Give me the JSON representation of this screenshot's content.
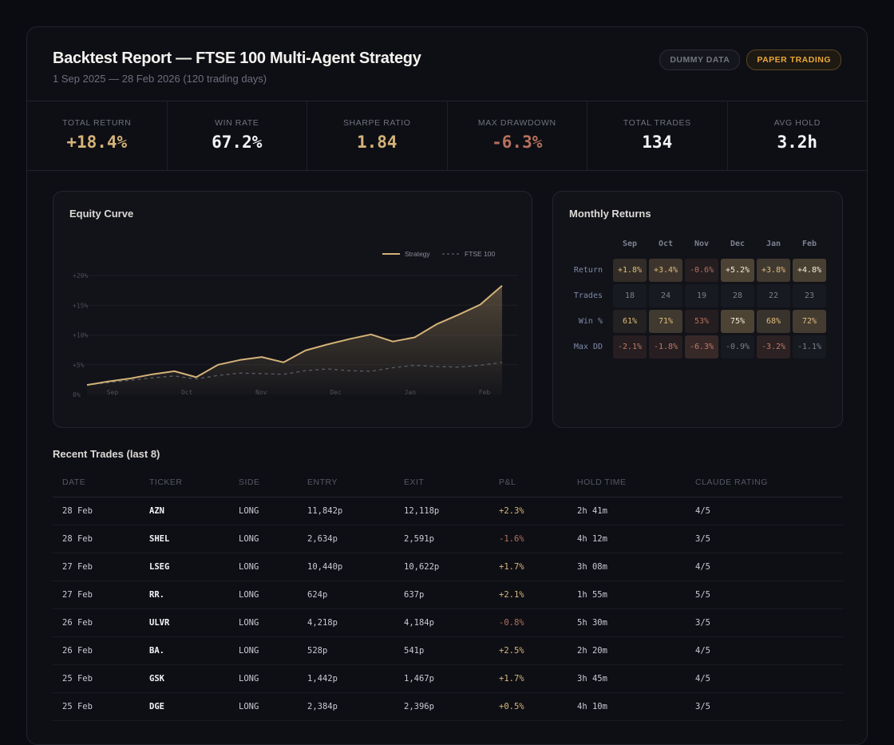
{
  "header": {
    "title": "Backtest Report — FTSE 100 Multi-Agent Strategy",
    "subtitle": "1 Sep 2025 — 28 Feb 2026 (120 trading days)",
    "badges": [
      "DUMMY DATA",
      "PAPER TRADING"
    ]
  },
  "colors": {
    "gold": "#d4b278",
    "red": "#b5705c",
    "white": "#f4f4f6"
  },
  "kpis": [
    {
      "label": "TOTAL RETURN",
      "value": "+18.4%",
      "color": "#d4b278"
    },
    {
      "label": "WIN RATE",
      "value": "67.2%",
      "color": "#f4f4f6"
    },
    {
      "label": "SHARPE RATIO",
      "value": "1.84",
      "color": "#d4b278"
    },
    {
      "label": "MAX DRAWDOWN",
      "value": "-6.3%",
      "color": "#b5705c"
    },
    {
      "label": "TOTAL TRADES",
      "value": "134",
      "color": "#f4f4f6"
    },
    {
      "label": "AVG HOLD",
      "value": "3.2h",
      "color": "#f4f4f6"
    }
  ],
  "chart_data": {
    "type": "line",
    "title": "Equity Curve",
    "legend": [
      "Strategy",
      "FTSE 100"
    ],
    "legend_position": "top-right",
    "y_ticks": [
      "0%",
      "+5%",
      "+10%",
      "+15%",
      "+20%"
    ],
    "x_ticks": [
      "Sep",
      "Oct",
      "Nov",
      "Dec",
      "Jan",
      "Feb"
    ],
    "ylim": [
      0,
      20
    ],
    "series": [
      {
        "name": "Strategy",
        "values": [
          1.6,
          2.2,
          2.7,
          3.4,
          3.9,
          2.9,
          5.0,
          5.8,
          6.3,
          5.4,
          7.4,
          8.4,
          9.3,
          10.1,
          8.9,
          9.6,
          11.8,
          13.4,
          15.1,
          18.3
        ]
      },
      {
        "name": "FTSE 100",
        "values": [
          1.6,
          2.0,
          2.4,
          2.8,
          3.1,
          2.6,
          3.2,
          3.6,
          3.5,
          3.4,
          4.0,
          4.3,
          4.0,
          3.9,
          4.5,
          4.9,
          4.7,
          4.6,
          4.9,
          5.4
        ]
      }
    ]
  },
  "monthly": {
    "title": "Monthly Returns",
    "months": [
      "Sep",
      "Oct",
      "Nov",
      "Dec",
      "Jan",
      "Feb"
    ],
    "rows": [
      {
        "label": "Return",
        "values": [
          "+1.8%",
          "+3.4%",
          "-0.6%",
          "+5.2%",
          "+3.8%",
          "+4.8%"
        ],
        "nums": [
          1.8,
          3.4,
          -0.6,
          5.2,
          3.8,
          4.8
        ],
        "kind": "ret"
      },
      {
        "label": "Trades",
        "values": [
          "18",
          "24",
          "19",
          "28",
          "22",
          "23"
        ],
        "nums": [
          0,
          0,
          0,
          0,
          0,
          0
        ],
        "kind": "neutral"
      },
      {
        "label": "Win %",
        "values": [
          "61%",
          "71%",
          "53%",
          "75%",
          "68%",
          "72%"
        ],
        "nums": [
          61,
          71,
          53,
          75,
          68,
          72
        ],
        "kind": "win"
      },
      {
        "label": "Max DD",
        "values": [
          "-2.1%",
          "-1.8%",
          "-6.3%",
          "-0.9%",
          "-3.2%",
          "-1.1%"
        ],
        "nums": [
          -2.1,
          -1.8,
          -6.3,
          -0.9,
          -3.2,
          -1.1
        ],
        "kind": "dd"
      }
    ]
  },
  "trades": {
    "title": "Recent Trades (last 8)",
    "columns": [
      "DATE",
      "TICKER",
      "SIDE",
      "ENTRY",
      "EXIT",
      "P&L",
      "HOLD TIME",
      "CLAUDE RATING"
    ],
    "rows": [
      [
        "28 Feb",
        "AZN",
        "LONG",
        "11,842p",
        "12,118p",
        "+2.3%",
        "2h 41m",
        "4/5"
      ],
      [
        "28 Feb",
        "SHEL",
        "LONG",
        "2,634p",
        "2,591p",
        "-1.6%",
        "4h 12m",
        "3/5"
      ],
      [
        "27 Feb",
        "LSEG",
        "LONG",
        "10,440p",
        "10,622p",
        "+1.7%",
        "3h 08m",
        "4/5"
      ],
      [
        "27 Feb",
        "RR.",
        "LONG",
        "624p",
        "637p",
        "+2.1%",
        "1h 55m",
        "5/5"
      ],
      [
        "26 Feb",
        "ULVR",
        "LONG",
        "4,218p",
        "4,184p",
        "-0.8%",
        "5h 30m",
        "3/5"
      ],
      [
        "26 Feb",
        "BA.",
        "LONG",
        "528p",
        "541p",
        "+2.5%",
        "2h 20m",
        "4/5"
      ],
      [
        "25 Feb",
        "GSK",
        "LONG",
        "1,442p",
        "1,467p",
        "+1.7%",
        "3h 45m",
        "4/5"
      ],
      [
        "25 Feb",
        "DGE",
        "LONG",
        "2,384p",
        "2,396p",
        "+0.5%",
        "4h 10m",
        "3/5"
      ]
    ]
  }
}
